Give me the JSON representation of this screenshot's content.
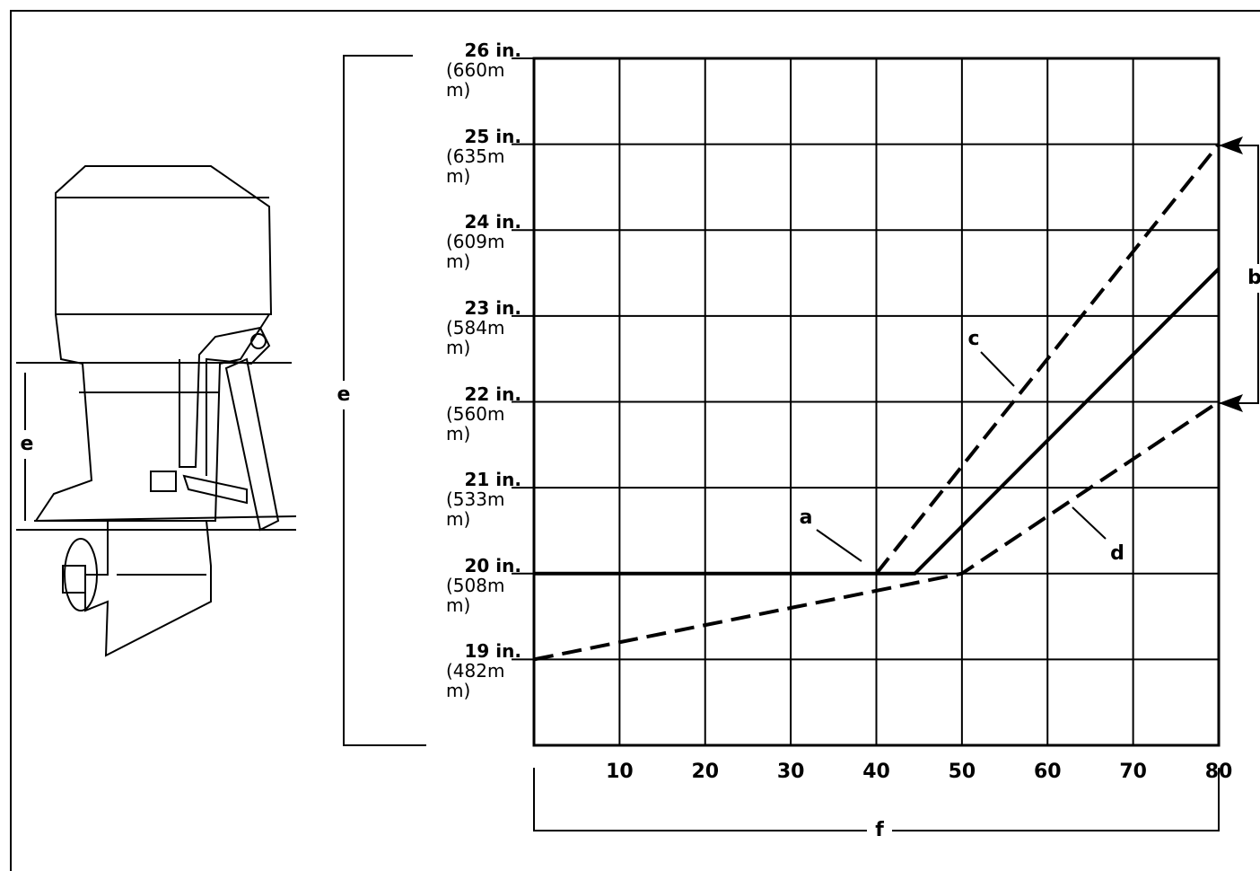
{
  "chart_data": {
    "type": "line",
    "xlim": [
      0,
      80
    ],
    "ylim": [
      18,
      26
    ],
    "xticks": [
      10,
      20,
      30,
      40,
      50,
      60,
      70,
      80
    ],
    "yticks": [
      {
        "value": 19,
        "label": "19 in."
      },
      {
        "value": 20,
        "label": "20 in."
      },
      {
        "value": 21,
        "label": "21 in."
      },
      {
        "value": 22,
        "label": "22 in."
      },
      {
        "value": 23,
        "label": "23 in."
      },
      {
        "value": 24,
        "label": "24 in."
      },
      {
        "value": 25,
        "label": "25 in."
      },
      {
        "value": 26,
        "label": "26 in."
      }
    ],
    "ytick_metric": [
      "(482mm)",
      "(508mm)",
      "(533mm)",
      "(560mm)",
      "(584mm)",
      "(609mm)",
      "(635mm)",
      "(660mm)"
    ],
    "grid": true,
    "series": [
      {
        "name": "a",
        "color": "#000000",
        "dashed": false,
        "x": [
          0,
          44.5,
          80
        ],
        "values": [
          20,
          20,
          23.55
        ]
      },
      {
        "name": "c",
        "color": "#000000",
        "dashed": true,
        "x": [
          40,
          80
        ],
        "values": [
          20,
          25
        ]
      },
      {
        "name": "d",
        "color": "#000000",
        "dashed": true,
        "x": [
          0,
          50,
          80
        ],
        "values": [
          19,
          20,
          22
        ]
      }
    ],
    "annotations": [
      "b",
      "e",
      "e",
      "f"
    ]
  }
}
